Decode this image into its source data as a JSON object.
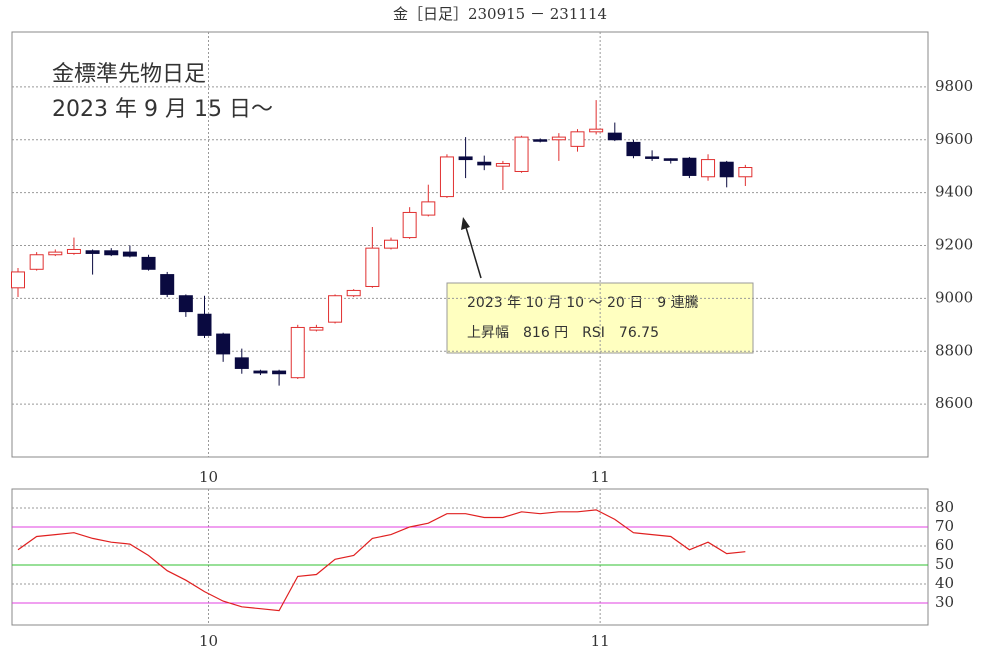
{
  "chart_data": [
    {
      "type": "candlestick",
      "title": "金［日足］230915 － 231114",
      "annotations": [
        "金標準先物日足",
        "2023 年 9 月 15 日～",
        "2023 年 10 月 10 ～ 20 日　9 連騰",
        "上昇幅　816 円　RSI　76.75"
      ],
      "categories": [
        null,
        null,
        null,
        null,
        null,
        null,
        null,
        null,
        null,
        null,
        "10",
        null,
        null,
        null,
        null,
        null,
        null,
        null,
        null,
        null,
        null,
        null,
        null,
        null,
        null,
        null,
        null,
        null,
        null,
        null,
        null,
        "11",
        null,
        null,
        null,
        null,
        null,
        null,
        null,
        null
      ],
      "open": [
        9040,
        9110,
        9165,
        9170,
        9180,
        9180,
        9175,
        9155,
        9090,
        9010,
        8940,
        8865,
        8775,
        8725,
        8725,
        8700,
        8880,
        8910,
        9010,
        9045,
        9190,
        9230,
        9315,
        9385,
        9535,
        9515,
        9500,
        9480,
        9600,
        9600,
        9575,
        9630,
        9625,
        9590,
        9535,
        9528,
        9530,
        9460,
        9515,
        9460
      ],
      "high": [
        9115,
        9175,
        9185,
        9230,
        9185,
        9190,
        9200,
        9165,
        9100,
        9015,
        9010,
        8870,
        8810,
        8730,
        8730,
        8900,
        8900,
        9015,
        9035,
        9270,
        9230,
        9345,
        9430,
        9545,
        9610,
        9540,
        9520,
        9615,
        9605,
        9625,
        9640,
        9750,
        9665,
        9600,
        9560,
        9530,
        9535,
        9545,
        9520,
        9505
      ],
      "low": [
        9005,
        9105,
        9160,
        9165,
        9090,
        9160,
        9155,
        9105,
        9005,
        8930,
        8850,
        8760,
        8715,
        8710,
        8670,
        8695,
        8875,
        8905,
        9005,
        9040,
        9185,
        9225,
        9310,
        9380,
        9455,
        9485,
        9410,
        9475,
        9590,
        9520,
        9555,
        9620,
        9595,
        9530,
        9520,
        9510,
        9455,
        9445,
        9420,
        9425
      ],
      "close": [
        9100,
        9165,
        9175,
        9185,
        9170,
        9165,
        9160,
        9110,
        9015,
        8950,
        8860,
        8790,
        8735,
        8718,
        8715,
        8890,
        8890,
        9010,
        9030,
        9190,
        9220,
        9325,
        9365,
        9535,
        9525,
        9505,
        9510,
        9610,
        9595,
        9610,
        9630,
        9640,
        9600,
        9540,
        9530,
        9522,
        9465,
        9525,
        9460,
        9495
      ],
      "up_color": "#e03030",
      "down_color": "#0a0a40",
      "ylim": [
        8400,
        10000
      ],
      "yticks": [
        8600,
        8800,
        9000,
        9200,
        9400,
        9600,
        9800
      ],
      "grid": true
    },
    {
      "type": "line",
      "categories": [
        null,
        null,
        null,
        null,
        null,
        null,
        null,
        null,
        null,
        null,
        "10",
        null,
        null,
        null,
        null,
        null,
        null,
        null,
        null,
        null,
        null,
        null,
        null,
        null,
        null,
        null,
        null,
        null,
        null,
        null,
        null,
        "11",
        null,
        null,
        null,
        null,
        null,
        null,
        null,
        null
      ],
      "values": [
        58,
        65,
        66,
        67,
        64,
        62,
        61,
        55,
        47,
        42,
        36,
        31,
        28,
        27,
        26,
        44,
        45,
        53,
        55,
        64,
        66,
        70,
        72,
        77,
        77,
        75,
        75,
        78,
        77,
        78,
        78,
        79,
        74,
        67,
        66,
        65,
        58,
        62,
        56,
        57
      ],
      "color": "#e02020",
      "reference_lines": [
        {
          "value": 70,
          "color": "#e040e0"
        },
        {
          "value": 50,
          "color": "#30c030"
        },
        {
          "value": 30,
          "color": "#e040e0"
        }
      ],
      "ylim": [
        20,
        90
      ],
      "yticks": [
        30,
        40,
        50,
        60,
        70,
        80
      ],
      "grid": true
    }
  ]
}
